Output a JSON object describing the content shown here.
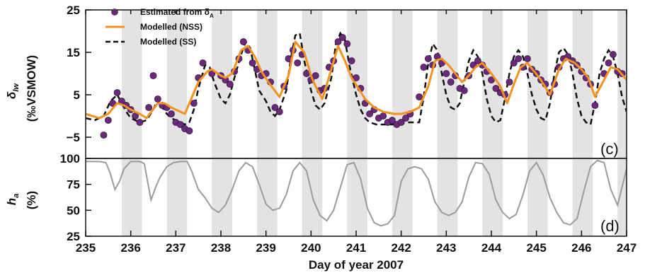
{
  "chart_data": [
    {
      "type": "line",
      "panel_label": "(c)",
      "ylabel_symbol": "δ",
      "ylabel_subscript": "lw",
      "ylabel_unit": "(‰VSMOW)",
      "xlabel": "Day of year 2007",
      "xlim": [
        235,
        247
      ],
      "ylim": [
        -10,
        25
      ],
      "yticks": [
        25,
        15,
        5,
        -5
      ],
      "xticks": [
        235,
        236,
        237,
        238,
        239,
        240,
        241,
        242,
        243,
        244,
        245,
        246,
        247
      ],
      "night_bands": [
        [
          235.8,
          236.25
        ],
        [
          236.8,
          237.25
        ],
        [
          237.8,
          238.25
        ],
        [
          238.8,
          239.25
        ],
        [
          239.8,
          240.25
        ],
        [
          240.8,
          241.25
        ],
        [
          241.8,
          242.25
        ],
        [
          242.8,
          243.25
        ],
        [
          243.8,
          244.25
        ],
        [
          244.8,
          245.25
        ],
        [
          245.8,
          246.25
        ],
        [
          246.8,
          247.0
        ]
      ],
      "legend": {
        "position": "top-left",
        "entries": [
          {
            "label": "Estimated from δ",
            "subscript": "A",
            "marker": "circle",
            "color": "#6a2a7a"
          },
          {
            "label": "Modelled (NSS)",
            "style": "solid",
            "color": "#f5921e"
          },
          {
            "label": "Modelled (SS)",
            "style": "dashed",
            "color": "#111111"
          }
        ]
      },
      "series": [
        {
          "name": "Modelled (NSS)",
          "x": [
            235.0,
            235.3,
            235.5,
            235.7,
            235.85,
            236.0,
            236.2,
            236.35,
            236.6,
            236.75,
            236.9,
            237.0,
            237.1,
            237.2,
            237.3,
            237.5,
            237.7,
            237.8,
            238.0,
            238.1,
            238.25,
            238.45,
            238.6,
            238.75,
            238.9,
            239.05,
            239.3,
            239.5,
            239.65,
            239.85,
            240.0,
            240.1,
            240.25,
            240.45,
            240.6,
            240.75,
            240.9,
            241.05,
            241.2,
            241.4,
            241.6,
            241.85,
            242.0,
            242.2,
            242.4,
            242.6,
            242.75,
            242.9,
            243.05,
            243.2,
            243.35,
            243.5,
            243.65,
            243.8,
            244.0,
            244.2,
            244.35,
            244.5,
            244.65,
            244.8,
            244.95,
            245.1,
            245.3,
            245.5,
            245.65,
            245.85,
            246.0,
            246.15,
            246.3,
            246.5,
            246.65,
            246.8,
            247.0
          ],
          "y": [
            0.5,
            -0.5,
            0.5,
            3.0,
            2.5,
            1.5,
            0.5,
            -0.5,
            3.0,
            3.0,
            2.0,
            1.5,
            1.0,
            0.5,
            3.0,
            8.0,
            10.5,
            11.0,
            9.5,
            9.0,
            10.0,
            15.5,
            16.5,
            14.0,
            10.5,
            8.0,
            4.5,
            9.5,
            17.5,
            15.0,
            9.5,
            7.0,
            4.0,
            11.0,
            16.5,
            13.0,
            9.0,
            6.5,
            4.0,
            2.0,
            1.0,
            0.5,
            0.5,
            1.0,
            2.0,
            7.0,
            13.0,
            13.5,
            12.0,
            10.0,
            8.0,
            9.5,
            11.5,
            12.5,
            10.0,
            7.0,
            3.0,
            7.5,
            11.5,
            12.5,
            10.5,
            8.5,
            5.0,
            11.0,
            13.5,
            12.5,
            11.0,
            9.0,
            4.5,
            8.5,
            11.5,
            11.0,
            8.5
          ]
        },
        {
          "name": "Modelled (SS)",
          "x": [
            235.0,
            235.2,
            235.4,
            235.55,
            235.7,
            235.8,
            235.9,
            236.0,
            236.1,
            236.2,
            236.35,
            236.5,
            236.6,
            236.7,
            236.8,
            236.9,
            237.0,
            237.1,
            237.2,
            237.3,
            237.4,
            237.5,
            237.65,
            237.75,
            237.85,
            238.0,
            238.1,
            238.2,
            238.3,
            238.45,
            238.55,
            238.65,
            238.75,
            238.85,
            239.0,
            239.1,
            239.2,
            239.3,
            239.45,
            239.55,
            239.65,
            239.75,
            239.85,
            240.0,
            240.1,
            240.2,
            240.3,
            240.45,
            240.55,
            240.65,
            240.75,
            240.85,
            241.0,
            241.1,
            241.2,
            241.3,
            241.45,
            241.6,
            241.8,
            242.0,
            242.2,
            242.4,
            242.5,
            242.6,
            242.7,
            242.8,
            242.9,
            243.0,
            243.1,
            243.2,
            243.3,
            243.4,
            243.5,
            243.6,
            243.7,
            243.8,
            243.9,
            244.0,
            244.1,
            244.2,
            244.3,
            244.4,
            244.5,
            244.6,
            244.7,
            244.8,
            244.9,
            245.0,
            245.1,
            245.2,
            245.3,
            245.4,
            245.5,
            245.6,
            245.7,
            245.8,
            245.9,
            246.0,
            246.1,
            246.2,
            246.3,
            246.4,
            246.5,
            246.6,
            246.7,
            246.8,
            246.9,
            247.0
          ],
          "y": [
            -0.5,
            -1.0,
            0.0,
            3.5,
            5.0,
            3.0,
            1.0,
            -0.5,
            -1.0,
            -1.5,
            -1.0,
            1.5,
            4.0,
            2.0,
            0.5,
            -0.5,
            -1.0,
            -1.5,
            -2.0,
            -1.5,
            1.5,
            6.5,
            12.0,
            11.5,
            8.0,
            4.0,
            3.0,
            5.0,
            9.0,
            14.5,
            17.5,
            16.0,
            11.0,
            6.0,
            3.5,
            1.0,
            0.0,
            1.5,
            6.0,
            13.5,
            19.0,
            19.5,
            13.0,
            6.0,
            2.5,
            1.5,
            3.0,
            9.0,
            17.0,
            19.5,
            18.0,
            12.0,
            5.0,
            1.5,
            -0.5,
            -1.5,
            -2.0,
            -2.0,
            -2.0,
            -1.5,
            -1.5,
            -1.5,
            4.5,
            12.5,
            17.0,
            15.5,
            10.0,
            5.0,
            2.0,
            1.5,
            3.0,
            8.0,
            13.0,
            15.5,
            14.0,
            10.0,
            4.0,
            0.0,
            -1.5,
            -1.0,
            4.0,
            10.0,
            14.0,
            15.5,
            14.0,
            10.0,
            5.0,
            1.5,
            -0.5,
            -1.0,
            3.0,
            10.0,
            15.0,
            16.0,
            14.5,
            10.0,
            4.0,
            0.0,
            -1.5,
            -2.0,
            3.0,
            10.0,
            13.5,
            15.5,
            14.0,
            10.0,
            4.5,
            1.0
          ]
        },
        {
          "name": "Estimated from δA",
          "x": [
            235.4,
            235.5,
            235.6,
            235.7,
            235.8,
            235.9,
            236.0,
            236.1,
            236.2,
            236.4,
            236.5,
            236.6,
            236.7,
            236.8,
            236.9,
            237.0,
            237.1,
            237.2,
            237.3,
            237.4,
            237.5,
            237.6,
            237.8,
            238.0,
            238.1,
            238.2,
            238.3,
            238.4,
            238.5,
            238.6,
            238.7,
            238.8,
            238.9,
            239.0,
            239.1,
            239.2,
            239.3,
            239.4,
            239.5,
            239.6,
            239.7,
            239.8,
            239.9,
            240.0,
            240.1,
            240.2,
            240.3,
            240.4,
            240.5,
            240.6,
            240.7,
            240.8,
            240.9,
            241.0,
            241.1,
            241.2,
            241.3,
            241.4,
            241.5,
            241.6,
            241.7,
            241.8,
            241.9,
            242.0,
            242.1,
            242.2,
            242.4,
            242.5,
            242.6,
            242.7,
            242.8,
            242.9,
            243.0,
            243.1,
            243.2,
            243.3,
            243.4,
            243.5,
            243.6,
            243.7,
            243.8,
            243.9,
            244.0,
            244.1,
            244.2,
            244.3,
            244.4,
            244.5,
            244.6,
            244.7,
            244.8,
            244.9,
            245.0,
            245.1,
            245.2,
            245.3,
            245.4,
            245.5,
            245.6,
            245.7,
            245.8,
            245.9,
            246.0,
            246.1,
            246.2,
            246.3,
            246.5,
            246.6,
            246.7,
            246.8,
            246.9
          ],
          "y": [
            -4.5,
            -1.0,
            3.0,
            5.5,
            3.5,
            2.5,
            1.5,
            0.0,
            -1.5,
            2.0,
            9.5,
            4.0,
            2.5,
            2.0,
            0.5,
            -1.5,
            -2.0,
            -3.0,
            -3.5,
            3.0,
            9.0,
            12.5,
            10.0,
            9.5,
            8.5,
            7.5,
            10.5,
            13.5,
            17.5,
            15.5,
            12.5,
            11.0,
            9.5,
            10.0,
            8.0,
            2.0,
            1.0,
            7.0,
            13.5,
            15.5,
            12.5,
            14.5,
            10.0,
            8.5,
            9.5,
            6.0,
            6.5,
            11.5,
            13.0,
            17.5,
            18.5,
            17.0,
            13.0,
            9.0,
            6.5,
            3.0,
            0.5,
            1.5,
            -0.5,
            0.0,
            -1.5,
            -1.0,
            -2.0,
            -1.5,
            -0.5,
            0.5,
            4.5,
            11.5,
            13.5,
            12.0,
            14.0,
            12.5,
            10.0,
            8.0,
            9.5,
            6.5,
            6.0,
            9.5,
            12.0,
            13.0,
            12.0,
            10.5,
            8.5,
            6.5,
            5.5,
            5.0,
            8.0,
            12.5,
            13.5,
            11.5,
            13.5,
            11.0,
            10.0,
            8.5,
            7.5,
            5.5,
            7.5,
            11.5,
            13.5,
            14.0,
            13.0,
            12.0,
            10.5,
            9.0,
            7.5,
            2.5,
            10.0,
            12.5,
            14.5,
            10.5,
            10.0
          ]
        }
      ]
    },
    {
      "type": "line",
      "panel_label": "(d)",
      "ylabel_symbol": "h",
      "ylabel_subscript": "a",
      "ylabel_unit": "(%)",
      "xlabel": "Day of year 2007",
      "xlim": [
        235,
        247
      ],
      "ylim": [
        25,
        100
      ],
      "yticks": [
        100,
        75,
        50,
        25
      ],
      "xticks": [
        235,
        236,
        237,
        238,
        239,
        240,
        241,
        242,
        243,
        244,
        245,
        246,
        247
      ],
      "series": [
        {
          "name": "",
          "color": "#9b9b9b",
          "x": [
            235.0,
            235.3,
            235.45,
            235.55,
            235.65,
            235.75,
            235.85,
            236.0,
            236.2,
            236.3,
            236.45,
            236.55,
            236.65,
            236.8,
            236.95,
            237.1,
            237.25,
            237.35,
            237.5,
            237.65,
            237.8,
            237.95,
            238.1,
            238.25,
            238.4,
            238.55,
            238.7,
            238.85,
            239.0,
            239.15,
            239.3,
            239.45,
            239.6,
            239.75,
            239.9,
            240.05,
            240.2,
            240.35,
            240.5,
            240.65,
            240.8,
            240.95,
            241.1,
            241.25,
            241.4,
            241.55,
            241.7,
            241.85,
            242.0,
            242.15,
            242.3,
            242.45,
            242.6,
            242.75,
            242.9,
            243.05,
            243.2,
            243.35,
            243.5,
            243.65,
            243.8,
            243.95,
            244.1,
            244.25,
            244.4,
            244.55,
            244.7,
            244.85,
            245.0,
            245.15,
            245.3,
            245.45,
            245.6,
            245.75,
            245.9,
            246.05,
            246.2,
            246.35,
            246.5,
            246.65,
            246.8,
            247.0
          ],
          "y": [
            97,
            97,
            96,
            85,
            70,
            78,
            90,
            97,
            97,
            95,
            60,
            72,
            82,
            92,
            96,
            97,
            97,
            88,
            70,
            62,
            52,
            48,
            55,
            70,
            88,
            96,
            92,
            75,
            56,
            50,
            52,
            65,
            88,
            96,
            88,
            60,
            45,
            40,
            50,
            72,
            94,
            96,
            80,
            52,
            38,
            35,
            37,
            45,
            78,
            90,
            92,
            90,
            80,
            58,
            48,
            45,
            48,
            58,
            82,
            96,
            95,
            85,
            60,
            48,
            42,
            46,
            65,
            88,
            96,
            84,
            62,
            48,
            38,
            36,
            42,
            68,
            92,
            98,
            96,
            70,
            55,
            90
          ]
        }
      ]
    }
  ]
}
